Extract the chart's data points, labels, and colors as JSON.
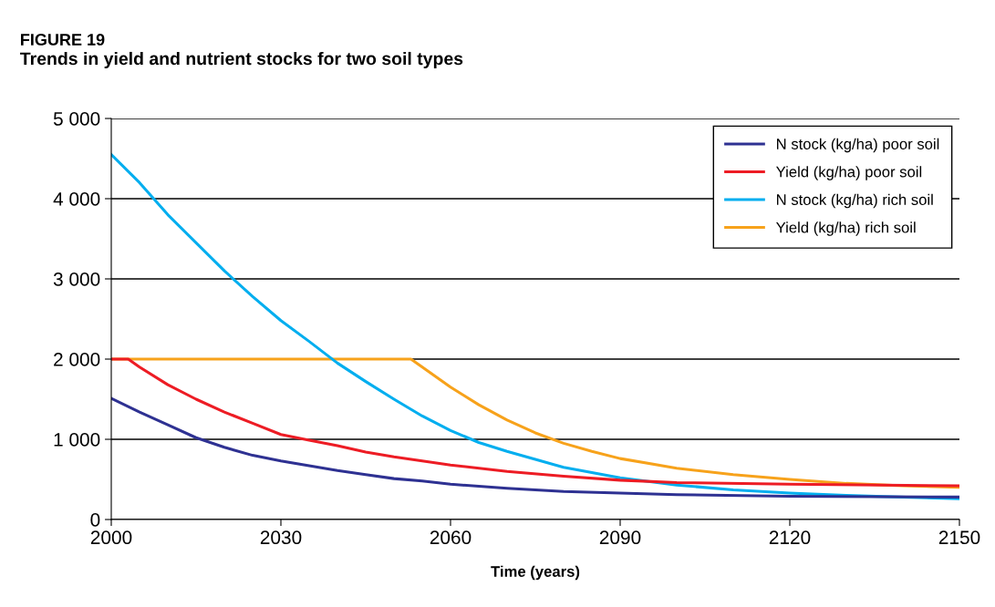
{
  "chart_data": {
    "type": "line",
    "title": "FIGURE 19",
    "subtitle": "Trends in yield and nutrient stocks for two soil types",
    "xlabel": "Time (years)",
    "xlim": [
      2000,
      2150
    ],
    "xticks": [
      2000,
      2030,
      2060,
      2090,
      2120,
      2150
    ],
    "ylim": [
      0,
      5000
    ],
    "yticks": [
      0,
      {
        "value": 1000,
        "label": "1 000"
      },
      {
        "value": 2000,
        "label": "2 000"
      },
      {
        "value": 3000,
        "label": "3 000"
      },
      {
        "value": 4000,
        "label": "4 000"
      },
      {
        "value": 5000,
        "label": "5 000"
      }
    ],
    "grid": "y",
    "legend": "top right",
    "marker": "none",
    "line_style": "solid",
    "series": [
      {
        "name": "N stock (kg/ha) poor soil",
        "color": "#2e3192",
        "x": [
          2000,
          2005,
          2010,
          2015,
          2020,
          2025,
          2030,
          2035,
          2040,
          2045,
          2050,
          2055,
          2060,
          2070,
          2080,
          2090,
          2100,
          2120,
          2150
        ],
        "values": [
          1510,
          1340,
          1180,
          1020,
          900,
          800,
          730,
          670,
          610,
          560,
          510,
          480,
          440,
          390,
          350,
          330,
          310,
          290,
          280
        ]
      },
      {
        "name": "Yield (kg/ha) poor soil",
        "color": "#ed1c24",
        "x": [
          2000,
          2003,
          2005,
          2010,
          2015,
          2020,
          2025,
          2030,
          2035,
          2040,
          2045,
          2050,
          2055,
          2060,
          2070,
          2080,
          2090,
          2100,
          2120,
          2150
        ],
        "values": [
          2000,
          2000,
          1900,
          1680,
          1500,
          1340,
          1200,
          1060,
          990,
          920,
          840,
          780,
          730,
          680,
          600,
          540,
          490,
          460,
          440,
          420
        ]
      },
      {
        "name": "N stock (kg/ha) rich soil",
        "color": "#00aeef",
        "x": [
          2000,
          2005,
          2010,
          2015,
          2020,
          2025,
          2030,
          2035,
          2040,
          2045,
          2050,
          2055,
          2060,
          2065,
          2070,
          2075,
          2080,
          2090,
          2100,
          2110,
          2120,
          2130,
          2150
        ],
        "values": [
          4550,
          4200,
          3800,
          3450,
          3100,
          2780,
          2480,
          2220,
          1950,
          1720,
          1500,
          1290,
          1110,
          960,
          850,
          750,
          650,
          520,
          430,
          370,
          330,
          300,
          260
        ]
      },
      {
        "name": "Yield (kg/ha) rich soil",
        "color": "#f7a21b",
        "x": [
          2000,
          2053,
          2055,
          2060,
          2065,
          2070,
          2075,
          2080,
          2085,
          2090,
          2100,
          2110,
          2120,
          2130,
          2140,
          2150
        ],
        "values": [
          2000,
          2000,
          1900,
          1650,
          1430,
          1240,
          1080,
          950,
          850,
          760,
          640,
          560,
          500,
          450,
          420,
          400
        ]
      }
    ]
  }
}
